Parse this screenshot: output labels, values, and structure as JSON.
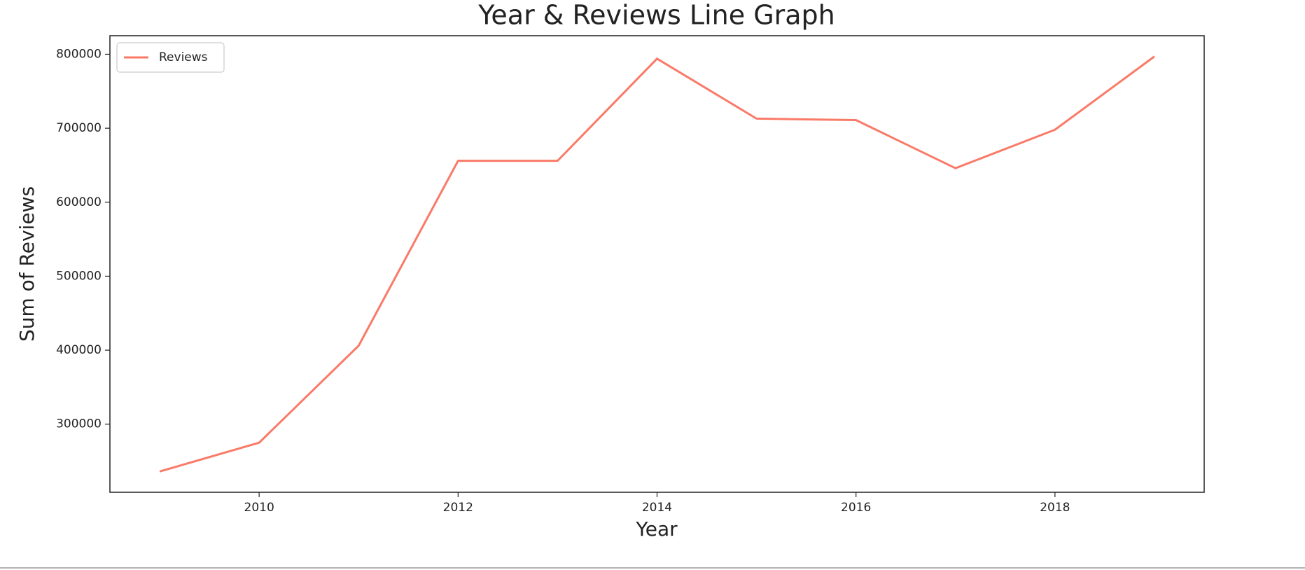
{
  "chart_data": {
    "type": "line",
    "title": "Year & Reviews Line Graph",
    "x_label": "Year",
    "y_label": "Sum of Reviews",
    "x": [
      2009,
      2010,
      2011,
      2012,
      2013,
      2014,
      2015,
      2016,
      2017,
      2018,
      2019
    ],
    "series": [
      {
        "name": "Reviews",
        "color": "#fa7a68",
        "values": [
          236000,
          275000,
          406000,
          656000,
          656000,
          794000,
          713000,
          711000,
          646000,
          698000,
          797000
        ]
      }
    ],
    "xlim": [
      2008.5,
      2019.5
    ],
    "xticks": [
      2010,
      2012,
      2014,
      2016,
      2018
    ],
    "ylim": [
      207950,
      825050
    ],
    "yticks": [
      300000,
      400000,
      500000,
      600000,
      700000,
      800000
    ],
    "legend": "upper left"
  }
}
